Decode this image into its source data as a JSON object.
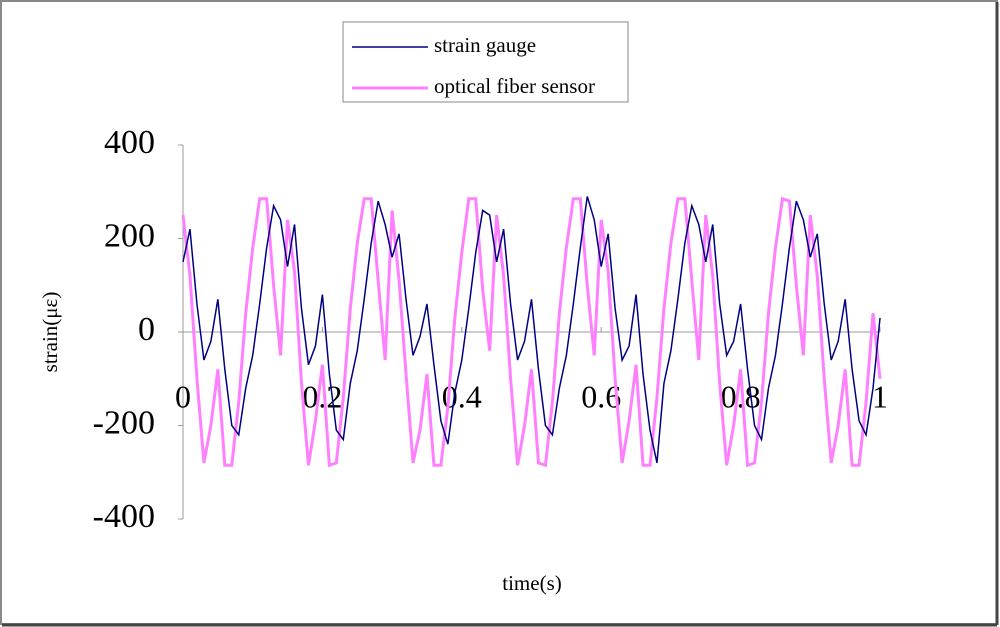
{
  "chart_data": {
    "type": "line",
    "x_label": "time(s)",
    "y_label": "strain(με)",
    "x": [
      0,
      0.01,
      0.02,
      0.03,
      0.04,
      0.05,
      0.06,
      0.07,
      0.08,
      0.09,
      0.1,
      0.11,
      0.12,
      0.13,
      0.14,
      0.15,
      0.16,
      0.17,
      0.18,
      0.19,
      0.2,
      0.21,
      0.22,
      0.23,
      0.24,
      0.25,
      0.26,
      0.27,
      0.28,
      0.29,
      0.3,
      0.31,
      0.32,
      0.33,
      0.34,
      0.35,
      0.36,
      0.37,
      0.38,
      0.39,
      0.4,
      0.41,
      0.42,
      0.43,
      0.44,
      0.45,
      0.46,
      0.47,
      0.48,
      0.49,
      0.5,
      0.51,
      0.52,
      0.53,
      0.54,
      0.55,
      0.56,
      0.57,
      0.58,
      0.59,
      0.6,
      0.61,
      0.62,
      0.63,
      0.64,
      0.65,
      0.66,
      0.67,
      0.68,
      0.69,
      0.7,
      0.71,
      0.72,
      0.73,
      0.74,
      0.75,
      0.76,
      0.77,
      0.78,
      0.79,
      0.8,
      0.81,
      0.82,
      0.83,
      0.84,
      0.85,
      0.86,
      0.87,
      0.88,
      0.89,
      0.9,
      0.91,
      0.92,
      0.93,
      0.94,
      0.95,
      0.96,
      0.97,
      0.98,
      0.99,
      1
    ],
    "series": [
      {
        "name": "optical fiber sensor",
        "color": "#ff80ff",
        "width": 3,
        "values": [
          250,
          120,
          -100,
          -280,
          -200,
          -80,
          -285,
          -285,
          -150,
          40,
          180,
          285,
          285,
          100,
          -50,
          240,
          130,
          -110,
          -285,
          -190,
          -70,
          -285,
          -280,
          -140,
          50,
          190,
          285,
          285,
          110,
          -60,
          260,
          110,
          -90,
          -280,
          -210,
          -90,
          -285,
          -285,
          -160,
          30,
          170,
          285,
          285,
          90,
          -40,
          250,
          120,
          -100,
          -285,
          -200,
          -80,
          -280,
          -285,
          -150,
          40,
          180,
          285,
          285,
          100,
          -50,
          240,
          130,
          -100,
          -280,
          -190,
          -70,
          -285,
          -285,
          -140,
          50,
          190,
          285,
          285,
          110,
          -60,
          250,
          120,
          -110,
          -285,
          -200,
          -80,
          -285,
          -280,
          -150,
          40,
          180,
          285,
          280,
          100,
          -50,
          250,
          120,
          -100,
          -280,
          -200,
          -80,
          -285,
          -285,
          -150,
          40,
          -100
        ]
      },
      {
        "name": "strain gauge",
        "color": "#000080",
        "width": 1.5,
        "values": [
          150,
          220,
          60,
          -60,
          -20,
          70,
          -80,
          -200,
          -220,
          -120,
          -50,
          60,
          180,
          270,
          240,
          140,
          230,
          50,
          -70,
          -30,
          80,
          -90,
          -210,
          -230,
          -110,
          -40,
          70,
          190,
          280,
          230,
          160,
          210,
          70,
          -50,
          -10,
          60,
          -70,
          -190,
          -240,
          -130,
          -60,
          50,
          170,
          260,
          250,
          150,
          220,
          60,
          -60,
          -20,
          70,
          -80,
          -200,
          -220,
          -120,
          -50,
          60,
          180,
          290,
          240,
          140,
          210,
          50,
          -60,
          -30,
          80,
          -90,
          -210,
          -280,
          -110,
          -40,
          70,
          190,
          270,
          230,
          150,
          230,
          60,
          -50,
          -20,
          60,
          -80,
          -200,
          -230,
          -120,
          -50,
          60,
          180,
          280,
          240,
          160,
          210,
          60,
          -60,
          -20,
          70,
          -80,
          -190,
          -220,
          -120,
          30
        ]
      }
    ],
    "xlim": [
      0,
      1
    ],
    "ylim": [
      -400,
      400
    ],
    "xticks": [
      0,
      0.2,
      0.4,
      0.6,
      0.8,
      1
    ],
    "yticks": [
      -400,
      -200,
      0,
      200,
      400
    ],
    "grid": false
  }
}
